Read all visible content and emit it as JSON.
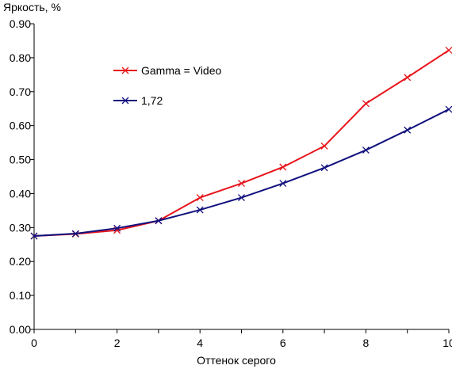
{
  "chart_data": {
    "type": "line",
    "ylabel": "Яркость, %",
    "xlabel": "Оттенок серого",
    "xlim": [
      0,
      10
    ],
    "ylim": [
      0,
      0.9
    ],
    "x_ticks": [
      "0",
      "2",
      "4",
      "6",
      "8",
      "10"
    ],
    "y_ticks": [
      "0.00",
      "0.10",
      "0.20",
      "0.30",
      "0.40",
      "0.50",
      "0.60",
      "0.70",
      "0.80",
      "0.90"
    ],
    "grid": false,
    "legend_position": "upper-left-inside",
    "series": [
      {
        "name": "Gamma = Video",
        "color": "#e8141b",
        "marker": "x",
        "x": [
          0,
          1,
          2,
          3,
          4,
          5,
          6,
          7,
          8,
          9,
          10
        ],
        "y": [
          0.275,
          0.281,
          0.292,
          0.32,
          0.388,
          0.43,
          0.478,
          0.54,
          0.665,
          0.742,
          0.822
        ]
      },
      {
        "name": "1,72",
        "color": "#10107e",
        "marker": "x",
        "x": [
          0,
          1,
          2,
          3,
          4,
          5,
          6,
          7,
          8,
          9,
          10
        ],
        "y": [
          0.275,
          0.282,
          0.298,
          0.32,
          0.352,
          0.388,
          0.43,
          0.476,
          0.528,
          0.587,
          0.648
        ]
      }
    ]
  }
}
